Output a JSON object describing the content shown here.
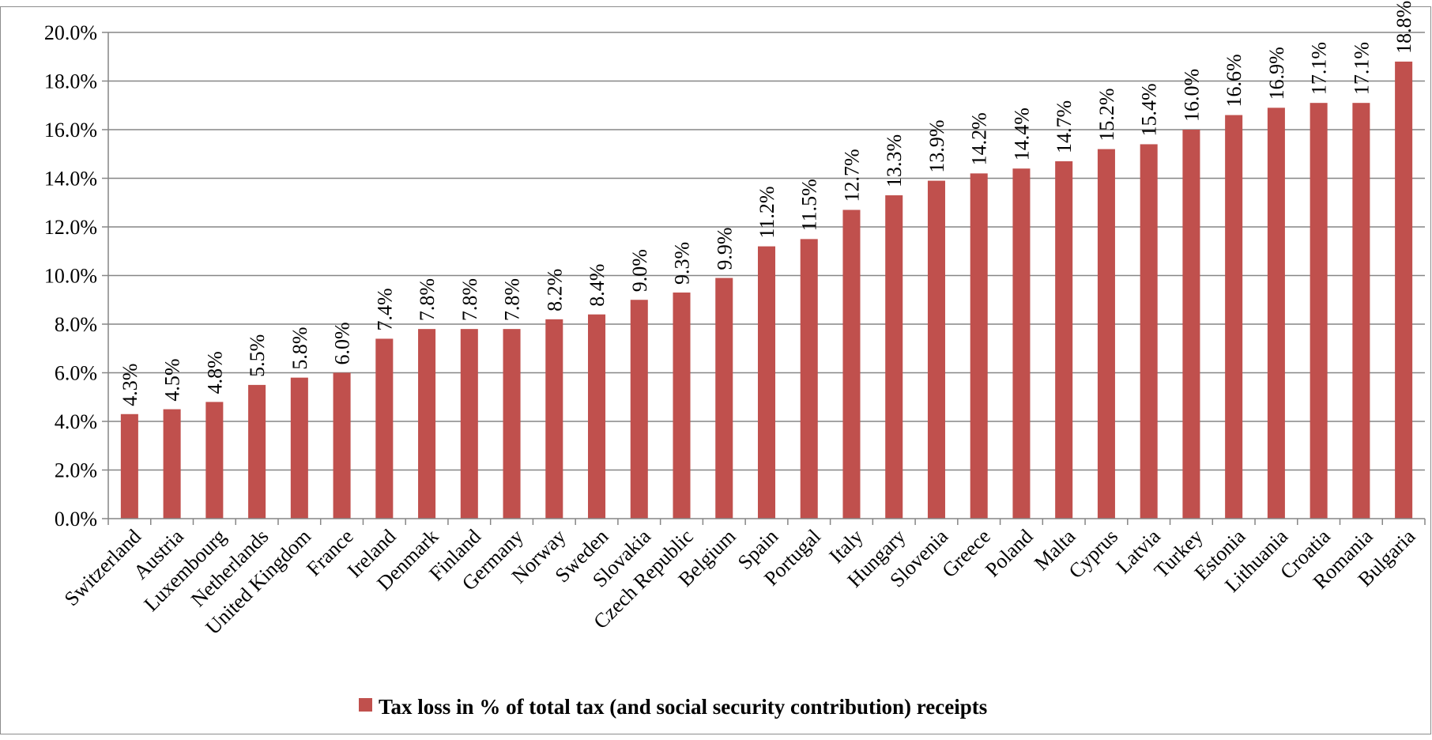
{
  "chart_data": {
    "type": "bar",
    "categories": [
      "Switzerland",
      "Austria",
      "Luxembourg",
      "Netherlands",
      "United Kingdom",
      "France",
      "Ireland",
      "Denmark",
      "Finland",
      "Germany",
      "Norway",
      "Sweden",
      "Slovakia",
      "Czech Republic",
      "Belgium",
      "Spain",
      "Portugal",
      "Italy",
      "Hungary",
      "Slovenia",
      "Greece",
      "Poland",
      "Malta",
      "Cyprus",
      "Latvia",
      "Turkey",
      "Estonia",
      "Lithuania",
      "Croatia",
      "Romania",
      "Bulgaria"
    ],
    "series": [
      {
        "name": "Tax loss in % of total tax (and social security contribution) receipts",
        "values": [
          4.3,
          4.5,
          4.8,
          5.5,
          5.8,
          6.0,
          7.4,
          7.8,
          7.8,
          7.8,
          8.2,
          8.4,
          9.0,
          9.3,
          9.9,
          11.2,
          11.5,
          12.7,
          13.3,
          13.9,
          14.2,
          14.4,
          14.7,
          15.2,
          15.4,
          16.0,
          16.6,
          16.9,
          17.1,
          17.1,
          18.8
        ],
        "data_labels": [
          "4.3%",
          "4.5%",
          "4.8%",
          "5.5%",
          "5.8%",
          "6.0%",
          "7.4%",
          "7.8%",
          "7.8%",
          "7.8%",
          "8.2%",
          "8.4%",
          "9.0%",
          "9.3%",
          "9.9%",
          "11.2%",
          "11.5%",
          "12.7%",
          "13.3%",
          "13.9%",
          "14.2%",
          "14.4%",
          "14.7%",
          "15.2%",
          "15.4%",
          "16.0%",
          "16.6%",
          "16.9%",
          "17.1%",
          "17.1%",
          "18.8%"
        ],
        "color": "#c0504d"
      }
    ],
    "title": "",
    "xlabel": "",
    "ylabel": "",
    "ylim": [
      0,
      20
    ],
    "yticks": [
      0,
      2,
      4,
      6,
      8,
      10,
      12,
      14,
      16,
      18,
      20
    ],
    "ytick_labels": [
      "0.0%",
      "2.0%",
      "4.0%",
      "6.0%",
      "8.0%",
      "10.0%",
      "12.0%",
      "14.0%",
      "16.0%",
      "18.0%",
      "20.0%"
    ],
    "grid": true,
    "gridline_color": "#868686",
    "legend_placement": "bottom"
  }
}
